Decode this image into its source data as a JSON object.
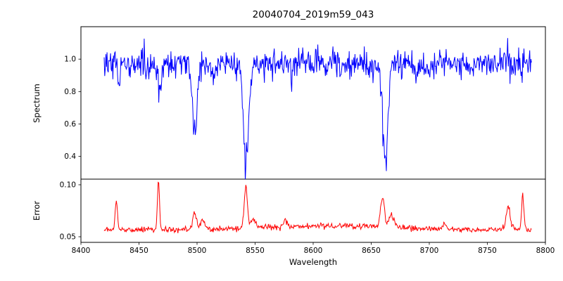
{
  "figure": {
    "background": "#ffffff"
  },
  "chart_data": {
    "type": "line",
    "title": "20040704_2019m59_043",
    "xlabel": "Wavelength",
    "legend": "none",
    "grid": false,
    "seed": 20040704,
    "x_axis": {
      "data_min": 8420,
      "data_max": 8788,
      "step": 0.5,
      "lim": [
        8400,
        8800
      ],
      "ticks": [
        8400,
        8450,
        8500,
        8550,
        8600,
        8650,
        8700,
        8750,
        8800
      ],
      "tick_labels": [
        "8400",
        "8450",
        "8500",
        "8550",
        "8600",
        "8650",
        "8700",
        "8750",
        "8800"
      ]
    },
    "panels": [
      {
        "name": "spectrum",
        "ylabel": "Spectrum",
        "line_color": "#0000ff",
        "ylim": [
          0.26,
          1.2
        ],
        "ticks": [
          0.4,
          0.6,
          0.8,
          1.0
        ],
        "tick_labels": [
          "0.4",
          "0.6",
          "0.8",
          "1.0"
        ],
        "model": {
          "continuum": 0.97,
          "noise_sigma": 0.042,
          "absorption_lines": [
            {
              "center": 8433.0,
              "depth": 0.1,
              "sigma": 1.2
            },
            {
              "center": 8468.4,
              "depth": 0.14,
              "sigma": 1.3
            },
            {
              "center": 8498.0,
              "depth": 0.49,
              "sigma": 1.8
            },
            {
              "center": 8514.1,
              "depth": 0.08,
              "sigma": 1.2
            },
            {
              "center": 8542.1,
              "depth": 0.65,
              "sigma": 2.2
            },
            {
              "center": 8582.3,
              "depth": 0.07,
              "sigma": 1.2
            },
            {
              "center": 8611.0,
              "depth": 0.05,
              "sigma": 1.0
            },
            {
              "center": 8662.1,
              "depth": 0.64,
              "sigma": 2.2
            },
            {
              "center": 8688.6,
              "depth": 0.09,
              "sigma": 1.3
            },
            {
              "center": 8736.0,
              "depth": 0.06,
              "sigma": 1.0
            }
          ]
        }
      },
      {
        "name": "error",
        "ylabel": "Error",
        "line_color": "#ff0000",
        "ylim": [
          0.0446,
          0.1054
        ],
        "ticks": [
          0.05,
          0.1
        ],
        "tick_labels": [
          "0.05",
          "0.10"
        ],
        "model": {
          "baseline": 0.0565,
          "noise_sigma": 0.0013,
          "broad_bump": {
            "center": 8615,
            "height": 0.004,
            "sigma": 55
          },
          "spikes": [
            {
              "center": 8430.5,
              "height": 0.027,
              "sigma": 1.0
            },
            {
              "center": 8466.8,
              "height": 0.046,
              "sigma": 0.9
            },
            {
              "center": 8497.9,
              "height": 0.016,
              "sigma": 1.6
            },
            {
              "center": 8505.0,
              "height": 0.008,
              "sigma": 2.0
            },
            {
              "center": 8541.9,
              "height": 0.039,
              "sigma": 1.4
            },
            {
              "center": 8548.0,
              "height": 0.008,
              "sigma": 2.5
            },
            {
              "center": 8576.0,
              "height": 0.007,
              "sigma": 1.5
            },
            {
              "center": 8659.8,
              "height": 0.03,
              "sigma": 1.6
            },
            {
              "center": 8667.5,
              "height": 0.012,
              "sigma": 2.2
            },
            {
              "center": 8713.0,
              "height": 0.006,
              "sigma": 1.5
            },
            {
              "center": 8768.0,
              "height": 0.022,
              "sigma": 1.8
            },
            {
              "center": 8780.5,
              "height": 0.032,
              "sigma": 1.0
            }
          ]
        }
      }
    ]
  }
}
